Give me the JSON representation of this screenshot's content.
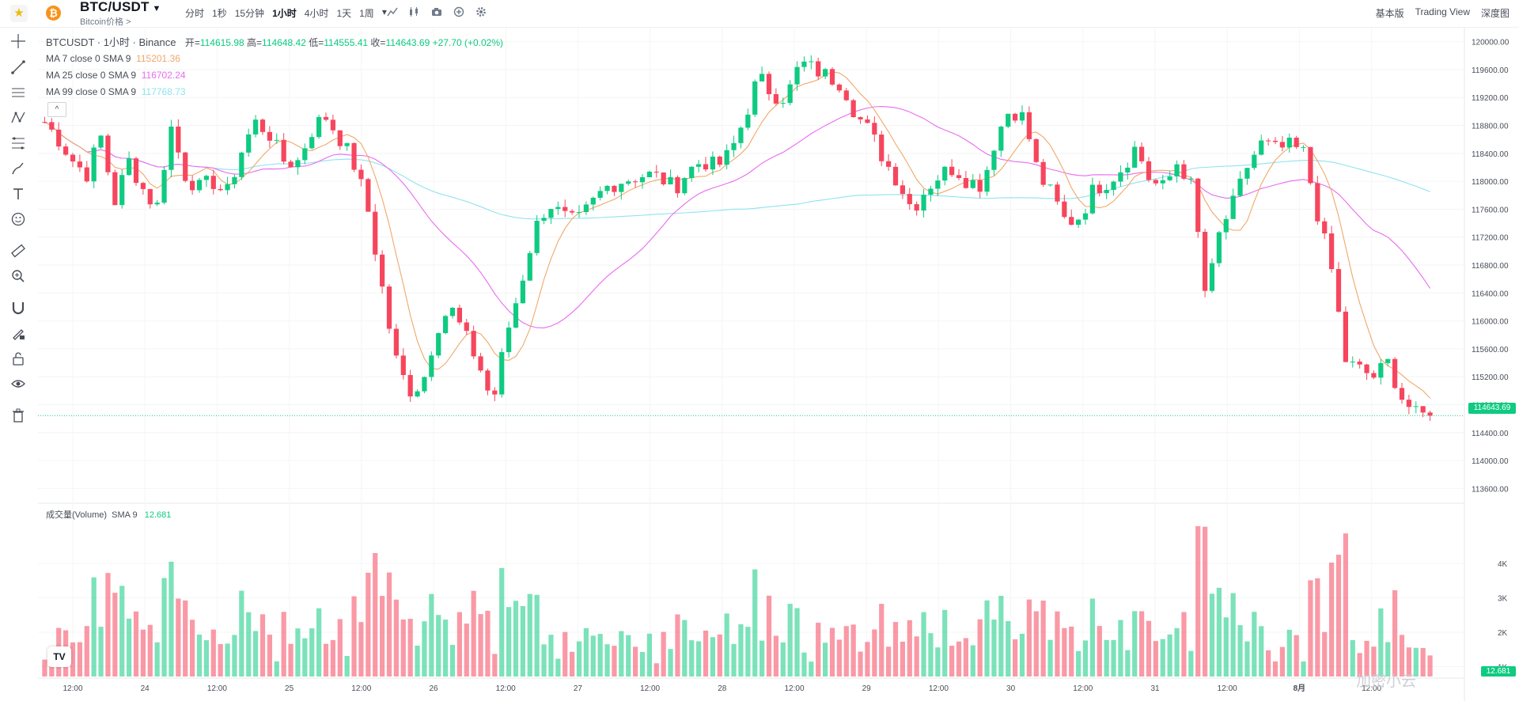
{
  "header": {
    "favorite_icon": "star-icon",
    "coin_icon": "bitcoin-icon",
    "coin_glyph": "₿",
    "symbol": "BTC/USDT",
    "symbol_caret": "▼",
    "subtitle": "Bitcoin价格 >",
    "intervals": [
      "分时",
      "1秒",
      "15分钟",
      "1小时",
      "4小时",
      "1天",
      "1周"
    ],
    "active_interval": "1小时",
    "more_glyph": "▾",
    "views": [
      "基本版",
      "Trading View",
      "深度图"
    ]
  },
  "legend": {
    "title": "BTCUSDT · 1小时 · Binance",
    "open_label": "开=",
    "open": "114615.98",
    "high_label": "高=",
    "high": "114648.42",
    "low_label": "低=",
    "low": "114555.41",
    "close_label": "收=",
    "close": "114643.69",
    "change": "+27.70 (+0.02%)",
    "ma7_label": "MA 7 close 0 SMA 9",
    "ma7": "115201.36",
    "ma25_label": "MA 25 close 0 SMA 9",
    "ma25": "116702.24",
    "ma99_label": "MA 99 close 0 SMA 9",
    "ma99": "117768.73",
    "collapse_glyph": "^"
  },
  "volume": {
    "label": "成交量(Volume)",
    "sma_label": "SMA 9",
    "sma": "12.681",
    "axis": [
      "4K",
      "3K",
      "2K",
      "1K"
    ]
  },
  "price_tag": "114643.69",
  "volume_tag": "12.681",
  "tv_logo": "TV",
  "watermark": "加密小云",
  "colors": {
    "up": "#0ecb81",
    "down": "#f6465d",
    "ma7": "#f0a869",
    "ma25": "#e96bf0",
    "ma99": "#8fe3ef"
  },
  "chart_data": {
    "type": "candlestick",
    "price_axis": [
      "120000.00",
      "119600.00",
      "119200.00",
      "118800.00",
      "118400.00",
      "118000.00",
      "117600.00",
      "117200.00",
      "116800.00",
      "116400.00",
      "116000.00",
      "115600.00",
      "115200.00",
      "114800.00",
      "114400.00",
      "114000.00",
      "113600.00"
    ],
    "ylim": [
      113400,
      120200
    ],
    "time_axis": [
      "12:00",
      "24",
      "12:00",
      "25",
      "12:00",
      "26",
      "12:00",
      "27",
      "12:00",
      "28",
      "12:00",
      "29",
      "12:00",
      "30",
      "12:00",
      "31",
      "12:00",
      "8月",
      "12:00"
    ],
    "close_path": [
      118850,
      118600,
      118300,
      118100,
      118650,
      117700,
      118300,
      117900,
      117600,
      118800,
      118100,
      117900,
      118000,
      117800,
      118400,
      118850,
      118700,
      118300,
      118250,
      118700,
      118950,
      118650,
      118300,
      117700,
      116600,
      115500,
      115000,
      115100,
      115900,
      116200,
      115800,
      115400,
      114800,
      115800,
      116500,
      117300,
      117700,
      117500,
      117400,
      117650,
      117900,
      118000,
      118050,
      118100,
      118050,
      117900,
      118150,
      118300,
      118200,
      118400,
      118900,
      119500,
      119250,
      119200,
      119700,
      119600,
      119500,
      119400,
      118950,
      118700,
      118300,
      118000,
      117600,
      117900,
      118100,
      118200,
      118000,
      117950,
      118650,
      119050,
      118900,
      118100,
      117800,
      117400,
      117500,
      117900,
      118000,
      118200,
      118500,
      118000,
      117900,
      118300,
      117900,
      116300,
      117300,
      117700,
      118250,
      118550,
      118450,
      118500,
      118400,
      117500,
      116700,
      115400,
      115300,
      115200,
      115400,
      114900,
      114650,
      114644
    ]
  }
}
